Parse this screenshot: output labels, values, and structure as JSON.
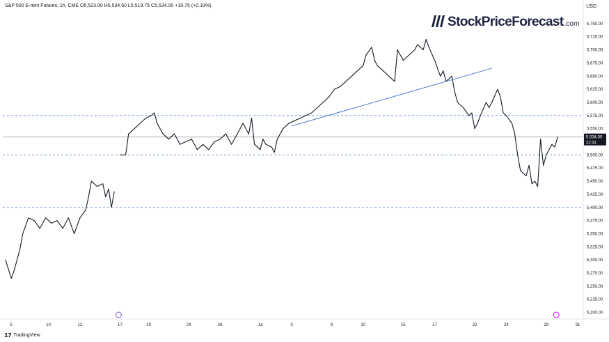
{
  "header": {
    "instrument": "S&P 500 E-mini Futures, 1h, CME",
    "ohlc": "O5,523.00 H5,534.50 L5,519.75 C5,534.00 +10.75 (+0.19%)"
  },
  "currency": "USD",
  "logo": {
    "name": "StockPriceForecast",
    "suffix": ".com"
  },
  "brand": "TradingView",
  "chart_data": {
    "type": "line",
    "title": "",
    "xlabel": "",
    "ylabel": "",
    "ylim": [
      5187.5,
      5775
    ],
    "y_ticks": [
      "5,200.00",
      "5,225.00",
      "5,250.00",
      "5,275.00",
      "5,300.00",
      "5,325.00",
      "5,350.00",
      "5,375.00",
      "5,400.00",
      "5,425.00",
      "5,450.00",
      "5,475.00",
      "5,500.00",
      "5,525.00",
      "5,550.00",
      "5,575.00",
      "5,600.00",
      "5,625.00",
      "5,650.00",
      "5,675.00",
      "5,700.00",
      "5,725.00",
      "5,750.00"
    ],
    "x_ticks": [
      {
        "label": "5",
        "t": 2
      },
      {
        "label": "10",
        "t": 15
      },
      {
        "label": "12",
        "t": 26
      },
      {
        "label": "17",
        "t": 40
      },
      {
        "label": "19",
        "t": 50
      },
      {
        "label": "24",
        "t": 64
      },
      {
        "label": "26",
        "t": 75
      },
      {
        "label": "Jul",
        "t": 89
      },
      {
        "label": "3",
        "t": 100
      },
      {
        "label": "8",
        "t": 114
      },
      {
        "label": "10",
        "t": 125
      },
      {
        "label": "15",
        "t": 139
      },
      {
        "label": "17",
        "t": 150
      },
      {
        "label": "22",
        "t": 164
      },
      {
        "label": "24",
        "t": 175
      },
      {
        "label": "29",
        "t": 189
      },
      {
        "label": "31",
        "t": 200
      }
    ],
    "series": [
      {
        "color": "#131722",
        "segments": [
          [
            [
              0,
              5300
            ],
            [
              2,
              5265
            ],
            [
              3,
              5280
            ],
            [
              5,
              5320
            ],
            [
              6,
              5350
            ],
            [
              8,
              5380
            ],
            [
              10,
              5375
            ],
            [
              12,
              5360
            ],
            [
              14,
              5380
            ],
            [
              16,
              5370
            ],
            [
              18,
              5375
            ],
            [
              20,
              5360
            ],
            [
              22,
              5380
            ],
            [
              24,
              5350
            ],
            [
              26,
              5380
            ],
            [
              28,
              5395
            ],
            [
              29,
              5420
            ],
            [
              30,
              5450
            ],
            [
              32,
              5440
            ],
            [
              34,
              5445
            ],
            [
              35,
              5420
            ],
            [
              36,
              5435
            ],
            [
              37,
              5400
            ],
            [
              38,
              5430
            ]
          ],
          [
            [
              40,
              5500
            ],
            [
              42,
              5500
            ],
            [
              43,
              5540
            ],
            [
              45,
              5550
            ],
            [
              47,
              5560
            ],
            [
              49,
              5570
            ],
            [
              51,
              5575
            ],
            [
              52,
              5580
            ],
            [
              53,
              5560
            ],
            [
              55,
              5540
            ],
            [
              57,
              5530
            ],
            [
              59,
              5540
            ],
            [
              61,
              5520
            ],
            [
              63,
              5525
            ],
            [
              65,
              5530
            ],
            [
              67,
              5510
            ],
            [
              69,
              5520
            ],
            [
              71,
              5510
            ],
            [
              73,
              5525
            ],
            [
              75,
              5530
            ],
            [
              77,
              5540
            ],
            [
              79,
              5520
            ],
            [
              81,
              5540
            ],
            [
              83,
              5560
            ],
            [
              85,
              5540
            ],
            [
              86,
              5570
            ],
            [
              87,
              5520
            ],
            [
              89,
              5510
            ],
            [
              90,
              5530
            ],
            [
              91,
              5520
            ],
            [
              93,
              5515
            ],
            [
              94,
              5505
            ],
            [
              95,
              5530
            ],
            [
              97,
              5550
            ],
            [
              99,
              5560
            ],
            [
              101,
              5565
            ],
            [
              103,
              5570
            ],
            [
              105,
              5575
            ],
            [
              107,
              5580
            ],
            [
              109,
              5590
            ],
            [
              111,
              5600
            ],
            [
              113,
              5610
            ],
            [
              115,
              5625
            ],
            [
              117,
              5630
            ],
            [
              119,
              5640
            ],
            [
              121,
              5650
            ],
            [
              123,
              5660
            ],
            [
              125,
              5670
            ],
            [
              126,
              5690
            ],
            [
              128,
              5705
            ],
            [
              129,
              5680
            ],
            [
              130,
              5670
            ],
            [
              132,
              5660
            ],
            [
              134,
              5650
            ],
            [
              136,
              5640
            ],
            [
              137,
              5700
            ],
            [
              139,
              5680
            ],
            [
              141,
              5690
            ],
            [
              143,
              5700
            ],
            [
              144,
              5710
            ],
            [
              146,
              5700
            ],
            [
              147,
              5720
            ],
            [
              148,
              5705
            ],
            [
              150,
              5680
            ],
            [
              152,
              5650
            ],
            [
              153,
              5660
            ],
            [
              154,
              5640
            ],
            [
              156,
              5650
            ],
            [
              157,
              5620
            ],
            [
              158,
              5600
            ],
            [
              160,
              5590
            ],
            [
              162,
              5575
            ],
            [
              163,
              5580
            ],
            [
              164,
              5550
            ],
            [
              165,
              5560
            ],
            [
              166,
              5575
            ],
            [
              168,
              5600
            ],
            [
              169,
              5590
            ],
            [
              170,
              5600
            ],
            [
              172,
              5625
            ],
            [
              173,
              5610
            ],
            [
              174,
              5580
            ],
            [
              175,
              5575
            ],
            [
              177,
              5560
            ],
            [
              178,
              5540
            ],
            [
              179,
              5500
            ],
            [
              180,
              5470
            ],
            [
              182,
              5460
            ],
            [
              183,
              5480
            ],
            [
              184,
              5445
            ],
            [
              185,
              5450
            ],
            [
              186,
              5440
            ],
            [
              187,
              5530
            ],
            [
              188,
              5480
            ],
            [
              189,
              5500
            ],
            [
              190,
              5510
            ],
            [
              191,
              5520
            ],
            [
              192,
              5515
            ],
            [
              193,
              5534
            ]
          ]
        ]
      }
    ],
    "trendline": {
      "from": [
        100,
        5555
      ],
      "to": [
        170,
        5665
      ],
      "color": "#4a78d6"
    },
    "reference_levels": [
      5575,
      5500,
      5400
    ],
    "last_price": {
      "value": 5534,
      "label": "5,534.00",
      "countdown": "22:31"
    }
  }
}
